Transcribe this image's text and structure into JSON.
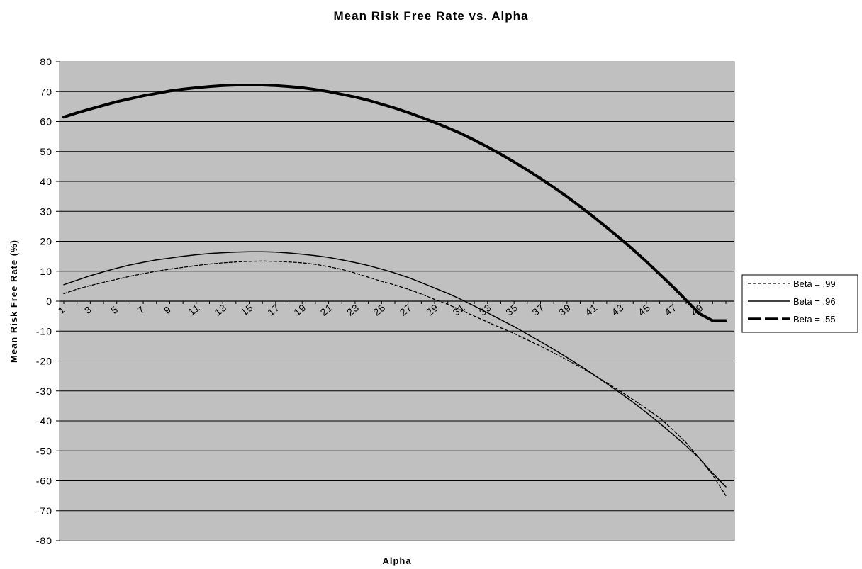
{
  "chart_data": {
    "type": "line",
    "title": "Mean Risk Free Rate vs. Alpha",
    "xlabel": "Alpha",
    "ylabel": "Mean Risk Free Rate (%)",
    "ylim": [
      -80,
      80
    ],
    "yticks": [
      "80",
      "70",
      "60",
      "50",
      "40",
      "30",
      "20",
      "10",
      "0",
      "-10",
      "-20",
      "-30",
      "-40",
      "-50",
      "-60",
      "-70",
      "-80"
    ],
    "x": [
      1,
      2,
      3,
      4,
      5,
      6,
      7,
      8,
      9,
      10,
      11,
      12,
      13,
      14,
      15,
      16,
      17,
      18,
      19,
      20,
      21,
      22,
      23,
      24,
      25,
      26,
      27,
      28,
      29,
      30,
      31,
      32,
      33,
      34,
      35,
      36,
      37,
      38,
      39,
      40,
      41,
      42,
      43,
      44,
      45,
      46,
      47,
      48,
      49,
      50,
      51
    ],
    "xtick_labels": [
      "1",
      "3",
      "5",
      "7",
      "9",
      "11",
      "13",
      "15",
      "17",
      "19",
      "21",
      "23",
      "25",
      "27",
      "29",
      "31",
      "33",
      "35",
      "37",
      "39",
      "41",
      "43",
      "45",
      "47",
      "49"
    ],
    "grid": "horizontal",
    "plot_background": "#c0c0c0",
    "legend_position": "right",
    "series": [
      {
        "name": "Beta = .99",
        "style": "dashed-thin",
        "color": "#000000",
        "values": [
          2.5,
          4.0,
          5.2,
          6.3,
          7.3,
          8.3,
          9.2,
          10.0,
          10.7,
          11.3,
          11.9,
          12.4,
          12.8,
          13.1,
          13.3,
          13.4,
          13.3,
          13.1,
          12.8,
          12.3,
          11.5,
          10.6,
          9.4,
          8.0,
          6.6,
          5.4,
          4.0,
          2.4,
          0.6,
          -1.1,
          -3.0,
          -5.0,
          -7.0,
          -8.9,
          -10.8,
          -12.9,
          -15.0,
          -17.3,
          -19.6,
          -22.0,
          -24.6,
          -27.2,
          -30.0,
          -32.9,
          -35.9,
          -39.0,
          -43.0,
          -47.3,
          -52.5,
          -58.0,
          -65.0
        ]
      },
      {
        "name": "Beta = .96",
        "style": "solid-thin",
        "color": "#000000",
        "values": [
          5.5,
          7.0,
          8.5,
          9.8,
          11.0,
          12.1,
          13.0,
          13.8,
          14.4,
          15.0,
          15.5,
          15.9,
          16.2,
          16.4,
          16.5,
          16.5,
          16.4,
          16.1,
          15.7,
          15.2,
          14.6,
          13.8,
          12.9,
          11.9,
          10.7,
          9.4,
          7.9,
          6.2,
          4.4,
          2.6,
          0.6,
          -1.6,
          -3.9,
          -6.2,
          -8.5,
          -11.0,
          -13.5,
          -16.1,
          -18.8,
          -21.6,
          -24.5,
          -27.5,
          -30.6,
          -33.8,
          -37.2,
          -40.8,
          -44.5,
          -48.4,
          -52.5,
          -57.5,
          -62.0
        ]
      },
      {
        "name": "Beta = .55",
        "style": "solid-thick",
        "color": "#000000",
        "values": [
          61.5,
          62.9,
          64.2,
          65.4,
          66.6,
          67.6,
          68.6,
          69.4,
          70.2,
          70.8,
          71.3,
          71.7,
          72.0,
          72.2,
          72.2,
          72.2,
          72.0,
          71.7,
          71.3,
          70.7,
          70.0,
          69.1,
          68.2,
          67.1,
          65.8,
          64.5,
          63.0,
          61.4,
          59.7,
          57.9,
          56.0,
          53.8,
          51.5,
          49.1,
          46.5,
          43.8,
          41.0,
          38.0,
          34.9,
          31.6,
          28.2,
          24.6,
          21.0,
          17.2,
          13.2,
          9.0,
          4.8,
          0.3,
          -4.2,
          -6.5,
          -6.5
        ]
      }
    ]
  }
}
